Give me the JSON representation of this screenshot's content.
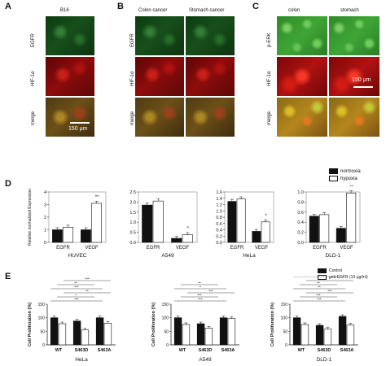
{
  "panels": {
    "A": {
      "letter": "A",
      "title": "B16",
      "rows": [
        "EGFR",
        "HIF-1α",
        "merge"
      ],
      "scale": "150 μm"
    },
    "B": {
      "letter": "B",
      "cols": [
        "Colon cancer",
        "Stomach cancer"
      ],
      "rows": [
        "EGFR",
        "HIF-1α",
        "merge"
      ]
    },
    "C": {
      "letter": "C",
      "cols": [
        "colon",
        "stomach"
      ],
      "rows": [
        "p-ERK",
        "HIF-1α",
        "merge"
      ],
      "scale": "150 μm"
    },
    "D": {
      "letter": "D"
    },
    "E": {
      "letter": "E"
    }
  },
  "colors": {
    "normoxia": "#111111",
    "hypoxia": "#ffffff",
    "control": "#111111",
    "anti": "#ffffff"
  },
  "chart_data": [
    {
      "type": "bar",
      "id": "D1",
      "title": "",
      "xlabel": "HUVEC",
      "ylabel": "Relative normalized Expression",
      "categories": [
        "EGFR",
        "VEGF"
      ],
      "ylim": [
        0,
        4
      ],
      "yticks": [
        "0",
        "1",
        "2",
        "3",
        "4"
      ],
      "series": [
        {
          "name": "normoxia",
          "values": [
            1.0,
            1.0
          ]
        },
        {
          "name": "hypoxia",
          "values": [
            1.2,
            3.1
          ]
        }
      ],
      "annotations": [
        {
          "category": "VEGF",
          "text": "**"
        }
      ]
    },
    {
      "type": "bar",
      "id": "D2",
      "title": "",
      "xlabel": "A549",
      "categories": [
        "EGFR",
        "VEGF"
      ],
      "ylim": [
        0,
        2.5
      ],
      "yticks": [
        "0.0",
        "0.5",
        "1.0",
        "1.5",
        "2.0",
        "2.5"
      ],
      "series": [
        {
          "name": "normoxia",
          "values": [
            1.85,
            0.2
          ]
        },
        {
          "name": "hypoxia",
          "values": [
            2.05,
            0.38
          ]
        }
      ],
      "annotations": [
        {
          "category": "VEGF",
          "text": "*"
        }
      ]
    },
    {
      "type": "bar",
      "id": "D3",
      "title": "",
      "xlabel": "HeLa",
      "categories": [
        "EGFR",
        "VEGF"
      ],
      "ylim": [
        0,
        1.6
      ],
      "yticks": [
        "0.0",
        "0.2",
        "0.4",
        "0.6",
        "0.8",
        "1.0",
        "1.2",
        "1.4",
        "1.6"
      ],
      "series": [
        {
          "name": "normoxia",
          "values": [
            1.3,
            0.35
          ]
        },
        {
          "name": "hypoxia",
          "values": [
            1.38,
            0.65
          ]
        }
      ],
      "annotations": [
        {
          "category": "VEGF",
          "text": "*"
        }
      ]
    },
    {
      "type": "bar",
      "id": "D4",
      "title": "",
      "xlabel": "DLD-1",
      "categories": [
        "EGFR",
        "VEGF"
      ],
      "ylim": [
        0,
        1.0
      ],
      "yticks": [
        "0.0",
        "0.2",
        "0.4",
        "0.6",
        "0.8",
        "1.0"
      ],
      "series": [
        {
          "name": "normoxia",
          "values": [
            0.52,
            0.28
          ]
        },
        {
          "name": "hypoxia",
          "values": [
            0.55,
            0.98
          ]
        }
      ],
      "annotations": [
        {
          "category": "VEGF",
          "text": "**"
        }
      ]
    },
    {
      "type": "bar",
      "id": "E1",
      "xlabel": "HeLa",
      "ylabel": "Cell Proliferation (%)",
      "categories": [
        "WT",
        "S463D",
        "S463A"
      ],
      "ylim": [
        0,
        150
      ],
      "yticks": [
        "0",
        "50",
        "100",
        "150"
      ],
      "series": [
        {
          "name": "Control",
          "values": [
            100,
            88,
            100
          ]
        },
        {
          "name": "anti-EGFR (10 μg/ml)",
          "values": [
            78,
            55,
            80
          ]
        }
      ],
      "significance": [
        "***",
        "*",
        "**",
        "***",
        "**",
        "***"
      ]
    },
    {
      "type": "bar",
      "id": "E2",
      "xlabel": "A549",
      "ylabel": "Cell Proliferation (%)",
      "categories": [
        "WT",
        "S463D",
        "S463A"
      ],
      "ylim": [
        0,
        150
      ],
      "yticks": [
        "0",
        "50",
        "100",
        "150"
      ],
      "series": [
        {
          "name": "Control",
          "values": [
            100,
            78,
            100
          ]
        },
        {
          "name": "anti-EGFR (10 μg/ml)",
          "values": [
            75,
            62,
            97
          ]
        }
      ],
      "significance": [
        "***",
        "***",
        "***",
        "*",
        "**"
      ]
    },
    {
      "type": "bar",
      "id": "E3",
      "xlabel": "DLD-1",
      "ylabel": "Cell Proliferation (%)",
      "categories": [
        "WT",
        "S463D",
        "S463A"
      ],
      "ylim": [
        0,
        150
      ],
      "yticks": [
        "0",
        "50",
        "100",
        "150"
      ],
      "series": [
        {
          "name": "Control",
          "values": [
            100,
            72,
            105
          ]
        },
        {
          "name": "anti-EGFR (10 μg/ml)",
          "values": [
            75,
            58,
            73
          ]
        }
      ],
      "significance": [
        "***",
        "***",
        "***",
        "**",
        "**",
        "*",
        "*"
      ]
    }
  ]
}
